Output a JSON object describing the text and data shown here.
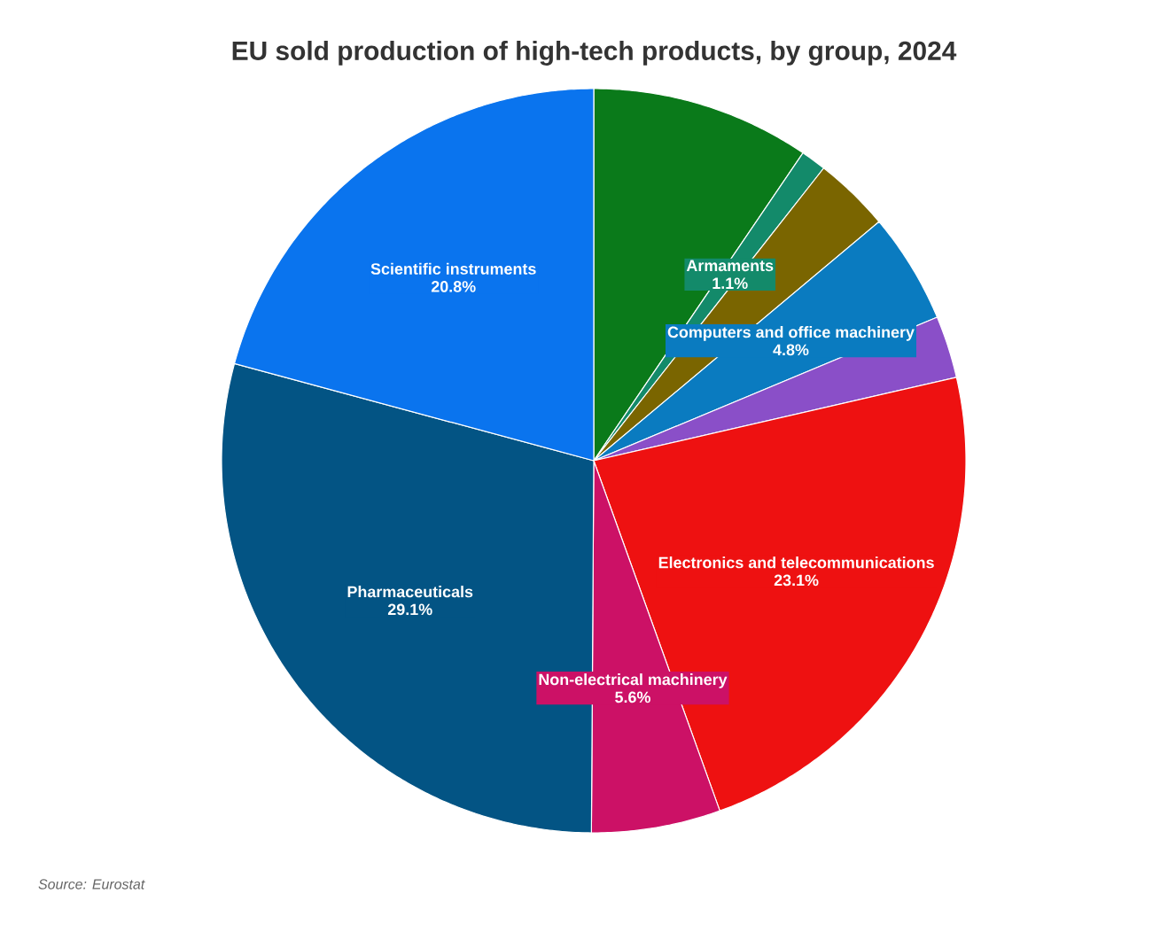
{
  "chart_data": {
    "type": "pie",
    "title": "EU sold production of high-tech products, by group, 2024",
    "categories": [
      null,
      "Armaments",
      null,
      "Computers and office machinery",
      null,
      "Electronics and telecommunications",
      "Non-electrical machinery",
      "Pharmaceuticals",
      "Scientific instruments"
    ],
    "values": [
      9.5,
      1.1,
      3.3,
      4.8,
      2.7,
      23.1,
      5.6,
      29.1,
      20.8
    ],
    "colors": [
      "#0a7a1a",
      "#138a6a",
      "#7a6500",
      "#0a7bc0",
      "#8a4fc8",
      "#ee1111",
      "#cc1166",
      "#035484",
      "#0a74ee"
    ],
    "value_labels": [
      null,
      "1.1%",
      null,
      "4.8%",
      null,
      "23.1%",
      "5.6%",
      "29.1%",
      "20.8%"
    ],
    "annotations": [
      "Source: Eurostat"
    ]
  }
}
